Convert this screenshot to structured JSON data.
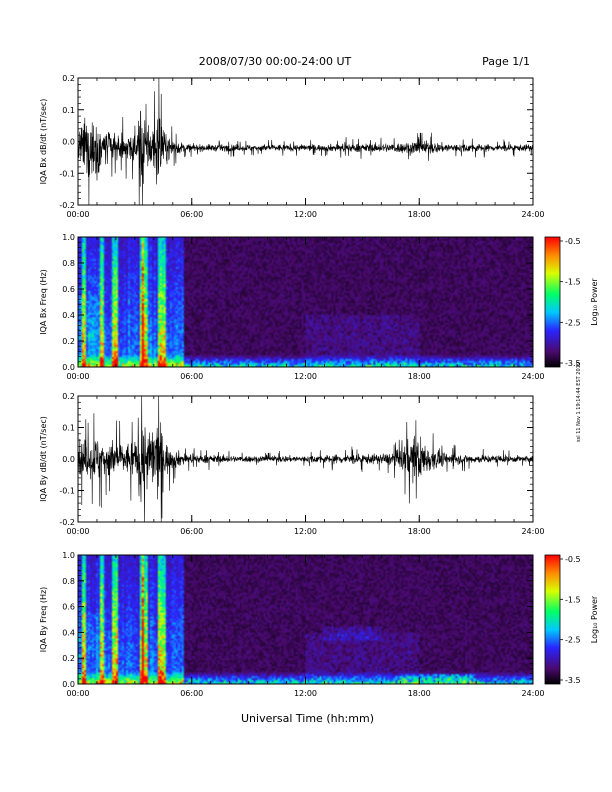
{
  "header": {
    "title": "2008/07/30  00:00-24:00 UT",
    "page": "Page 1/1"
  },
  "footer": {
    "side_note": "ssl 11 Nov 1 19:14:44 EST 2019"
  },
  "chart_data": [
    {
      "type": "line",
      "panel": "bx-waveform",
      "ylabel": "IQA Bx dB/dt (nT/sec)",
      "xlabel": "",
      "xlim": [
        "00:00",
        "24:00"
      ],
      "xticks": [
        "00:00",
        "06:00",
        "12:00",
        "18:00",
        "24:00"
      ],
      "ylim": [
        -0.2,
        0.2
      ],
      "yticks": [
        "0.2",
        "0.1",
        "0.0",
        "-0.1",
        "-0.2"
      ],
      "envelope": {
        "x_hours": [
          0,
          0.5,
          1,
          1.5,
          2,
          2.5,
          3,
          3.3,
          3.5,
          3.8,
          4,
          4.3,
          4.5,
          5,
          5.5,
          6,
          7,
          8,
          9,
          10,
          11,
          12,
          13,
          14,
          15,
          16,
          16.5,
          17,
          17.5,
          18,
          18.5,
          19,
          20,
          21,
          22,
          23,
          24
        ],
        "amplitude": [
          0.09,
          0.2,
          0.18,
          0.12,
          0.08,
          0.07,
          0.1,
          0.25,
          0.25,
          0.12,
          0.18,
          0.25,
          0.1,
          0.05,
          0.03,
          0.02,
          0.02,
          0.02,
          0.02,
          0.02,
          0.02,
          0.02,
          0.02,
          0.025,
          0.025,
          0.025,
          0.03,
          0.03,
          0.04,
          0.05,
          0.04,
          0.03,
          0.025,
          0.025,
          0.02,
          0.02,
          0.02
        ],
        "offset": -0.02
      }
    },
    {
      "type": "heatmap",
      "panel": "bx-spectrogram",
      "ylabel": "IQA Bx Freq (Hz)",
      "xlabel": "",
      "xlim": [
        "00:00",
        "24:00"
      ],
      "xticks": [
        "00:00",
        "06:00",
        "12:00",
        "18:00",
        "24:00"
      ],
      "ylim": [
        0,
        1.0
      ],
      "yticks": [
        "1.0",
        "0.8",
        "0.6",
        "0.4",
        "0.2",
        "0.0"
      ],
      "colorbar": {
        "label": "Log₁₀ Power",
        "range": [
          -3.5,
          -0.5
        ],
        "ticks": [
          "-0.5",
          "-1.5",
          "-2.5",
          "-3.5"
        ]
      }
    },
    {
      "type": "line",
      "panel": "by-waveform",
      "ylabel": "IQA By dB/dt (nT/sec)",
      "xlabel": "",
      "xlim": [
        "00:00",
        "24:00"
      ],
      "xticks": [
        "00:00",
        "06:00",
        "12:00",
        "18:00",
        "24:00"
      ],
      "ylim": [
        -0.2,
        0.2
      ],
      "yticks": [
        "0.2",
        "0.1",
        "0.0",
        "-0.1",
        "-0.2"
      ],
      "envelope": {
        "x_hours": [
          0,
          0.5,
          1,
          1.5,
          2,
          2.5,
          3,
          3.3,
          3.5,
          3.8,
          4,
          4.3,
          4.5,
          5,
          5.5,
          6,
          7,
          8,
          9,
          10,
          11,
          12,
          13,
          14,
          15,
          16,
          16.5,
          17,
          17.5,
          18,
          18.5,
          19,
          20,
          21,
          22,
          23,
          24
        ],
        "amplitude": [
          0.1,
          0.12,
          0.14,
          0.12,
          0.1,
          0.09,
          0.12,
          0.25,
          0.25,
          0.14,
          0.25,
          0.25,
          0.12,
          0.06,
          0.04,
          0.025,
          0.025,
          0.02,
          0.02,
          0.02,
          0.02,
          0.02,
          0.025,
          0.03,
          0.03,
          0.03,
          0.04,
          0.07,
          0.12,
          0.14,
          0.08,
          0.05,
          0.03,
          0.025,
          0.025,
          0.02,
          0.02
        ],
        "offset": 0.0
      }
    },
    {
      "type": "heatmap",
      "panel": "by-spectrogram",
      "ylabel": "IQA By Freq (Hz)",
      "xlabel": "Universal Time (hh:mm)",
      "xlim": [
        "00:00",
        "24:00"
      ],
      "xticks": [
        "00:00",
        "06:00",
        "12:00",
        "18:00",
        "24:00"
      ],
      "ylim": [
        0,
        1.0
      ],
      "yticks": [
        "1.0",
        "0.8",
        "0.6",
        "0.4",
        "0.2",
        "0.0"
      ],
      "colorbar": {
        "label": "Log₁₀ Power",
        "range": [
          -3.5,
          -0.5
        ],
        "ticks": [
          "-0.5",
          "-1.5",
          "-2.5",
          "-3.5"
        ]
      }
    }
  ]
}
